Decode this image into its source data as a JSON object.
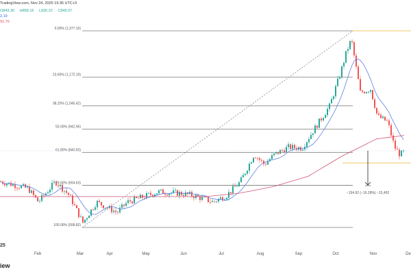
{
  "header": {
    "source": "TradingView.com, Nov 24, 2025 19:36 UTC+3",
    "ohlc": {
      "o": "843.30",
      "h": "858.16",
      "l": "830.22",
      "c": "849.07"
    },
    "ma_fast": "2.19",
    "ma_slow": "91.76"
  },
  "footer": {
    "logo_text": "iew",
    "year_fragment": "25"
  },
  "colors": {
    "up": "#26a69a",
    "down": "#ef5350",
    "blue_ma": "#5b7fe0",
    "red_ma": "#d05070",
    "fib": "#777777",
    "orange": "#f0b232"
  },
  "chart_data": {
    "type": "candlestick",
    "x_ticks": [
      "Feb",
      "Mar",
      "Apr",
      "May",
      "Jun",
      "Jul",
      "Aug",
      "Sep",
      "Oct",
      "Nov",
      "De"
    ],
    "ylim": [
      508.82,
      1377.1
    ],
    "fib_levels": [
      {
        "label": "0.00% (1,377.10)",
        "price": 1377.1
      },
      {
        "label": "23.60% (1,172.19)",
        "price": 1172.19
      },
      {
        "label": "38.20% (1,045.42)",
        "price": 1045.42
      },
      {
        "label": "50.00% (942.96)",
        "price": 942.96
      },
      {
        "label": "61.80% (840.50)",
        "price": 840.5
      },
      {
        "label": "78.60% (694.63)",
        "price": 694.63
      },
      {
        "label": "100.00% (508.82)",
        "price": 508.82
      }
    ],
    "measurement": {
      "label": "−154.92 (−16.28%) −15,492",
      "from": 984,
      "to": 830
    },
    "price_anchors": [
      [
        0,
        711
      ],
      [
        40,
        681
      ],
      [
        55,
        621
      ],
      [
        80,
        711
      ],
      [
        100,
        651
      ],
      [
        120,
        530
      ],
      [
        140,
        621
      ],
      [
        170,
        575
      ],
      [
        185,
        621
      ],
      [
        230,
        666
      ],
      [
        260,
        660
      ],
      [
        280,
        651
      ],
      [
        310,
        621
      ],
      [
        330,
        651
      ],
      [
        350,
        711
      ],
      [
        370,
        832
      ],
      [
        385,
        787
      ],
      [
        400,
        832
      ],
      [
        420,
        863
      ],
      [
        440,
        860
      ],
      [
        460,
        953
      ],
      [
        480,
        1044
      ],
      [
        495,
        1180
      ],
      [
        505,
        1286
      ],
      [
        512,
        1340
      ],
      [
        518,
        1230
      ],
      [
        525,
        1105
      ],
      [
        540,
        1120
      ],
      [
        550,
        1000
      ],
      [
        565,
        975
      ],
      [
        575,
        863
      ],
      [
        583,
        830
      ],
      [
        590,
        845
      ]
    ],
    "ma200_anchors": [
      [
        0,
        645
      ],
      [
        100,
        645
      ],
      [
        200,
        645
      ],
      [
        300,
        645
      ],
      [
        350,
        660
      ],
      [
        400,
        690
      ],
      [
        450,
        735
      ],
      [
        500,
        825
      ],
      [
        550,
        900
      ],
      [
        590,
        915
      ]
    ]
  }
}
